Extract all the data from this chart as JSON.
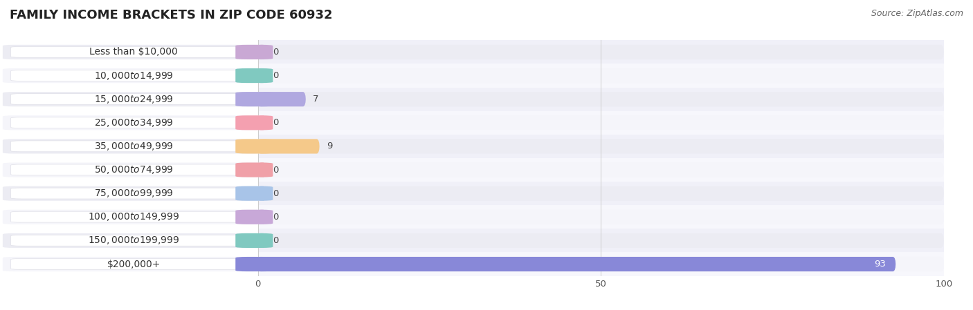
{
  "title": "FAMILY INCOME BRACKETS IN ZIP CODE 60932",
  "source": "Source: ZipAtlas.com",
  "categories": [
    "Less than $10,000",
    "$10,000 to $14,999",
    "$15,000 to $24,999",
    "$25,000 to $34,999",
    "$35,000 to $49,999",
    "$50,000 to $74,999",
    "$75,000 to $99,999",
    "$100,000 to $149,999",
    "$150,000 to $199,999",
    "$200,000+"
  ],
  "values": [
    0,
    0,
    7,
    0,
    9,
    0,
    0,
    0,
    0,
    93
  ],
  "bar_colors": [
    "#c9a8d4",
    "#80c9c0",
    "#b0a8e0",
    "#f4a0b0",
    "#f5c98a",
    "#f0a0a8",
    "#a8c4e8",
    "#c8a8d8",
    "#80c9c0",
    "#8888d8"
  ],
  "row_bg_colors": [
    "#ededf4",
    "#ededf4",
    "#ededf4",
    "#ededf4",
    "#ededf4",
    "#ededf4",
    "#ededf4",
    "#ededf4",
    "#ededf4",
    "#ededf4"
  ],
  "bg_row_alt": [
    "#f0f0f8",
    "#f7f7fc"
  ],
  "xlim": [
    0,
    100
  ],
  "xticks": [
    0,
    50,
    100
  ],
  "bar_height": 0.62,
  "background_color": "#ffffff",
  "title_fontsize": 13,
  "label_fontsize": 10,
  "value_fontsize": 9.5,
  "source_fontsize": 9
}
